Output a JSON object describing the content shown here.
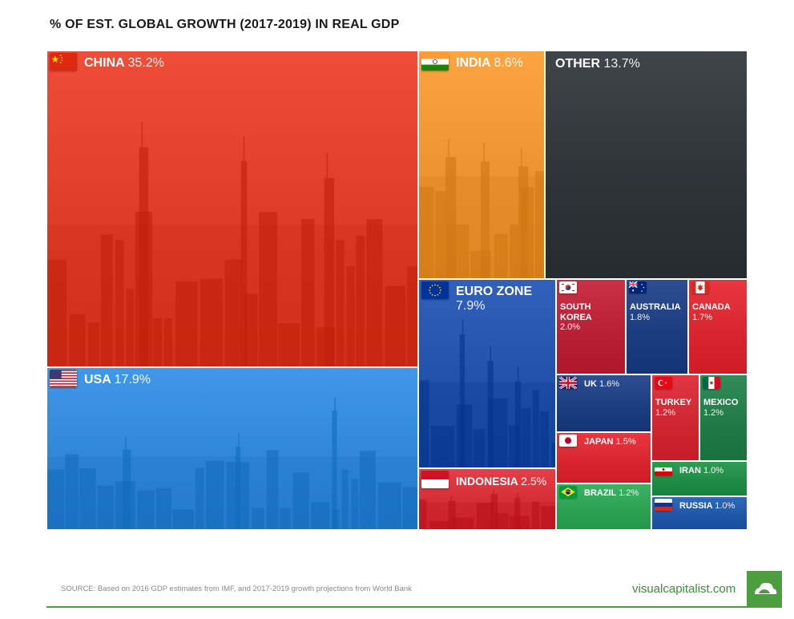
{
  "title": "% OF EST. GLOBAL GROWTH (2017-2019) IN REAL GDP",
  "chart_data": {
    "type": "treemap",
    "title": "% OF EST. GLOBAL GROWTH (2017-2019) IN REAL GDP",
    "unit": "%",
    "items": [
      {
        "name": "CHINA",
        "label": "35.2%",
        "value": 35.2,
        "color": "#dd3b26",
        "flag": "china",
        "skyline": true
      },
      {
        "name": "USA",
        "label": "17.9%",
        "value": 17.9,
        "color": "#2f86d6",
        "flag": "usa",
        "skyline": true
      },
      {
        "name": "INDIA",
        "label": "8.6%",
        "value": 8.6,
        "color": "#eb922e",
        "flag": "india",
        "skyline": true
      },
      {
        "name": "OTHER",
        "label": "13.7%",
        "value": 13.7,
        "color": "#2e3338",
        "flag": "",
        "skyline": false
      },
      {
        "name": "EURO ZONE",
        "label": "7.9%",
        "value": 7.9,
        "color": "#1f4fa8",
        "flag": "eu",
        "skyline": true
      },
      {
        "name": "INDONESIA",
        "label": "2.5%",
        "value": 2.5,
        "color": "#d42c35",
        "flag": "indonesia",
        "skyline": true
      },
      {
        "name": "SOUTH KOREA",
        "label": "2.0%",
        "value": 2.0,
        "color": "#b81f34",
        "flag": "korea",
        "skyline": false
      },
      {
        "name": "AUSTRALIA",
        "label": "1.8%",
        "value": 1.8,
        "color": "#1c3c80",
        "flag": "australia",
        "skyline": false
      },
      {
        "name": "CANADA",
        "label": "1.7%",
        "value": 1.7,
        "color": "#d7252e",
        "flag": "canada",
        "skyline": false
      },
      {
        "name": "UK",
        "label": "1.6%",
        "value": 1.6,
        "color": "#1c3c80",
        "flag": "uk",
        "skyline": false
      },
      {
        "name": "TURKEY",
        "label": "1.2%",
        "value": 1.2,
        "color": "#cf2530",
        "flag": "turkey",
        "skyline": false
      },
      {
        "name": "MEXICO",
        "label": "1.2%",
        "value": 1.2,
        "color": "#1f7a45",
        "flag": "mexico",
        "skyline": false
      },
      {
        "name": "JAPAN",
        "label": "1.5%",
        "value": 1.5,
        "color": "#d7252e",
        "flag": "japan",
        "skyline": false
      },
      {
        "name": "IRAN",
        "label": "1.0%",
        "value": 1.0,
        "color": "#1f8a44",
        "flag": "iran",
        "skyline": false
      },
      {
        "name": "BRAZIL",
        "label": "1.2%",
        "value": 1.2,
        "color": "#2aa150",
        "flag": "brazil",
        "skyline": false
      },
      {
        "name": "RUSSIA",
        "label": "1.0%",
        "value": 1.0,
        "color": "#1e56a8",
        "flag": "russia",
        "skyline": false
      }
    ]
  },
  "footer": {
    "source": "SOURCE: Based on 2016 GDP estimates from IMF, and 2017-2019 growth projections from World Bank",
    "brand": "visualcapitalist.com"
  }
}
